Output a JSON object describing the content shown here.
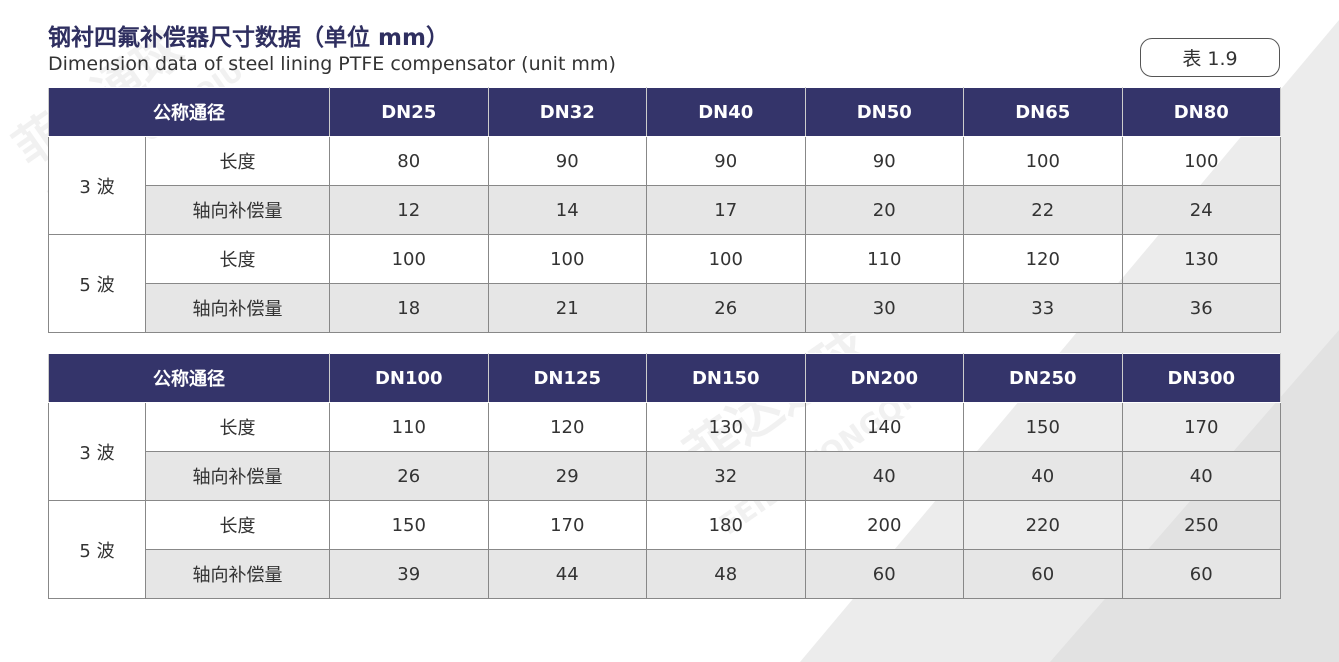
{
  "header": {
    "title": "钢衬四氟补偿器尺寸数据（单位 mm）",
    "subtitle": "Dimension data of steel lining PTFE compensator (unit mm)",
    "badge": "表 1.9"
  },
  "watermark": {
    "brand": "菲达通球",
    "brand_en": "FEIDA TONGQIU"
  },
  "tables": [
    {
      "header": {
        "label": "公称通径",
        "columns": [
          "DN25",
          "DN32",
          "DN40",
          "DN50",
          "DN65",
          "DN80"
        ]
      },
      "groups": [
        {
          "label": "3 波",
          "rows": [
            {
              "label": "长度",
              "values": [
                80,
                90,
                90,
                90,
                100,
                100
              ]
            },
            {
              "label": "轴向补偿量",
              "values": [
                12,
                14,
                17,
                20,
                22,
                24
              ]
            }
          ]
        },
        {
          "label": "5 波",
          "rows": [
            {
              "label": "长度",
              "values": [
                100,
                100,
                100,
                110,
                120,
                130
              ]
            },
            {
              "label": "轴向补偿量",
              "values": [
                18,
                21,
                26,
                30,
                33,
                36
              ]
            }
          ]
        }
      ]
    },
    {
      "header": {
        "label": "公称通径",
        "columns": [
          "DN100",
          "DN125",
          "DN150",
          "DN200",
          "DN250",
          "DN300"
        ]
      },
      "groups": [
        {
          "label": "3 波",
          "rows": [
            {
              "label": "长度",
              "values": [
                110,
                120,
                130,
                140,
                150,
                170
              ]
            },
            {
              "label": "轴向补偿量",
              "values": [
                26,
                29,
                32,
                40,
                40,
                40
              ]
            }
          ]
        },
        {
          "label": "5 波",
          "rows": [
            {
              "label": "长度",
              "values": [
                150,
                170,
                180,
                200,
                220,
                250
              ]
            },
            {
              "label": "轴向补偿量",
              "values": [
                39,
                44,
                48,
                60,
                60,
                60
              ]
            }
          ]
        }
      ]
    }
  ]
}
